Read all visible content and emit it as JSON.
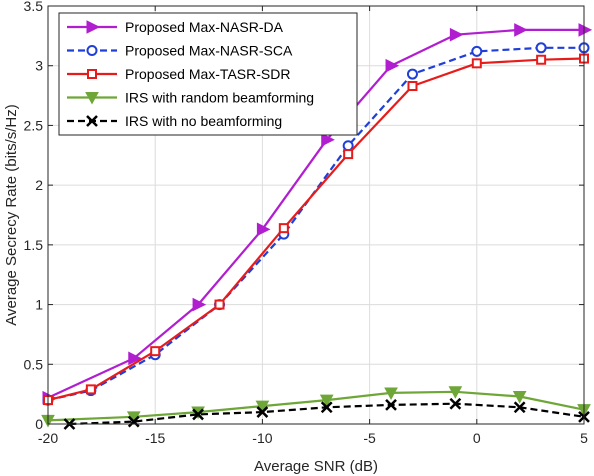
{
  "chart_data": {
    "type": "line",
    "xlabel": "Average SNR (dB)",
    "ylabel": "Average Secrecy Rate (bits/s/Hz)",
    "xlim": [
      -20,
      5
    ],
    "ylim": [
      0,
      3.5
    ],
    "xticks": [
      -20,
      -15,
      -10,
      -5,
      0,
      5
    ],
    "yticks": [
      0,
      0.5,
      1,
      1.5,
      2,
      2.5,
      3,
      3.5
    ],
    "xtick_labels": [
      "-20",
      "-15",
      "-10",
      "-5",
      "0",
      "5"
    ],
    "ytick_labels": [
      "0",
      "0.5",
      "1",
      "1.5",
      "2",
      "2.5",
      "3",
      "3.5"
    ],
    "grid": true,
    "legend_position": "top-left",
    "series": [
      {
        "name": "Proposed Max-NASR-DA",
        "color": "#b11ed0",
        "dash": "solid",
        "marker": "triangle-right",
        "x": [
          -20,
          -16,
          -13,
          -10,
          -7,
          -4,
          -1,
          2,
          5
        ],
        "y": [
          0.22,
          0.55,
          1.0,
          1.63,
          2.38,
          3.0,
          3.26,
          3.3,
          3.3
        ]
      },
      {
        "name": "Proposed Max-NASR-SCA",
        "color": "#1f3fd8",
        "dash": "dashed",
        "marker": "circle",
        "x": [
          -20,
          -18,
          -15,
          -12,
          -9,
          -6,
          -3,
          0,
          3,
          5
        ],
        "y": [
          0.2,
          0.28,
          0.58,
          1.0,
          1.59,
          2.33,
          2.93,
          3.12,
          3.15,
          3.15
        ]
      },
      {
        "name": "Proposed Max-TASR-SDR",
        "color": "#e81b1b",
        "dash": "solid",
        "marker": "square",
        "x": [
          -20,
          -18,
          -15,
          -12,
          -9,
          -6,
          -3,
          0,
          3,
          5
        ],
        "y": [
          0.2,
          0.29,
          0.61,
          1.0,
          1.64,
          2.26,
          2.83,
          3.02,
          3.05,
          3.06
        ]
      },
      {
        "name": "IRS with random beamforming",
        "color": "#6ea638",
        "dash": "solid",
        "marker": "triangle-down",
        "x": [
          -20,
          -16,
          -13,
          -10,
          -7,
          -4,
          -1,
          2,
          5
        ],
        "y": [
          0.03,
          0.06,
          0.1,
          0.15,
          0.2,
          0.26,
          0.27,
          0.23,
          0.12
        ]
      },
      {
        "name": "IRS with no beamforming",
        "color": "#000000",
        "dash": "dashed",
        "marker": "x",
        "x": [
          -19,
          -16,
          -13,
          -10,
          -7,
          -4,
          -1,
          2,
          5
        ],
        "y": [
          0.0,
          0.02,
          0.08,
          0.1,
          0.14,
          0.16,
          0.17,
          0.14,
          0.06
        ]
      }
    ]
  }
}
